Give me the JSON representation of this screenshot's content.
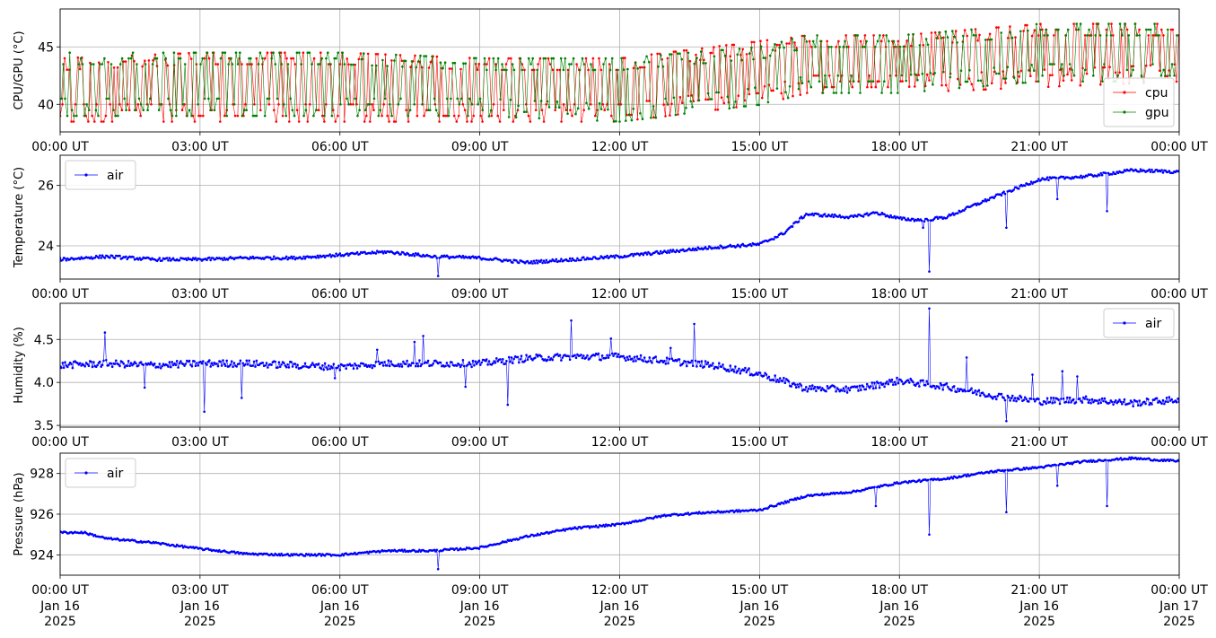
{
  "x_ticks": [
    "00:00 UT",
    "03:00 UT",
    "06:00 UT",
    "09:00 UT",
    "12:00 UT",
    "15:00 UT",
    "18:00 UT",
    "21:00 UT",
    "00:00 UT"
  ],
  "x_date_lines": [
    "Jan 16",
    "Jan 16",
    "Jan 16",
    "Jan 16",
    "Jan 16",
    "Jan 16",
    "Jan 16",
    "Jan 16",
    "Jan 17"
  ],
  "x_year_lines": [
    "2025",
    "2025",
    "2025",
    "2025",
    "2025",
    "2025",
    "2025",
    "2025",
    "2025"
  ],
  "chart_data": [
    {
      "type": "line",
      "ylabel": "CPU/GPU (°C)",
      "ylim": [
        37.6,
        48.3
      ],
      "yticks": [
        40,
        45
      ],
      "xlim": [
        "2025-01-16 00:00",
        "2025-01-17 00:00"
      ],
      "grid": true,
      "legend_position": "bottom-right",
      "series": [
        {
          "name": "cpu",
          "color": "#ff0000",
          "baseline_by_hour": [
            {
              "hour": 0,
              "low": 38.5,
              "high": 44.0
            },
            {
              "hour": 3,
              "low": 38.5,
              "high": 44.5
            },
            {
              "hour": 6,
              "low": 38.5,
              "high": 44.5
            },
            {
              "hour": 9,
              "low": 38.5,
              "high": 44.0
            },
            {
              "hour": 12,
              "low": 38.5,
              "high": 44.0
            },
            {
              "hour": 15,
              "low": 40.0,
              "high": 45.5
            },
            {
              "hour": 16,
              "low": 41.0,
              "high": 46.0
            },
            {
              "hour": 18,
              "low": 41.0,
              "high": 46.0
            },
            {
              "hour": 21,
              "low": 41.5,
              "high": 47.0
            },
            {
              "hour": 24,
              "low": 42.0,
              "high": 47.0
            }
          ]
        },
        {
          "name": "gpu",
          "color": "#008000",
          "baseline_by_hour": [
            {
              "hour": 0,
              "low": 39.0,
              "high": 44.5
            },
            {
              "hour": 3,
              "low": 39.0,
              "high": 44.5
            },
            {
              "hour": 6,
              "low": 39.0,
              "high": 44.5
            },
            {
              "hour": 9,
              "low": 39.0,
              "high": 44.0
            },
            {
              "hour": 12,
              "low": 38.5,
              "high": 44.0
            },
            {
              "hour": 15,
              "low": 40.0,
              "high": 45.0
            },
            {
              "hour": 16,
              "low": 41.0,
              "high": 46.0
            },
            {
              "hour": 18,
              "low": 41.0,
              "high": 46.0
            },
            {
              "hour": 21,
              "low": 42.0,
              "high": 47.0
            },
            {
              "hour": 24,
              "low": 42.0,
              "high": 47.0
            }
          ]
        }
      ]
    },
    {
      "type": "line",
      "ylabel": "Temperature (°C)",
      "ylim": [
        22.9,
        27.0
      ],
      "yticks": [
        24,
        26
      ],
      "xlim": [
        "2025-01-16 00:00",
        "2025-01-17 00:00"
      ],
      "grid": true,
      "legend_position": "top-left",
      "series": [
        {
          "name": "air",
          "color": "#0000ff",
          "x_hours": [
            0,
            1,
            2,
            3,
            4,
            5,
            6,
            7,
            8,
            9,
            10,
            11,
            12,
            13,
            14,
            15,
            15.5,
            16,
            17,
            17.5,
            18,
            18.5,
            19,
            20,
            21,
            22,
            23,
            24
          ],
          "values": [
            23.55,
            23.65,
            23.55,
            23.55,
            23.6,
            23.6,
            23.7,
            23.8,
            23.65,
            23.6,
            23.45,
            23.55,
            23.65,
            23.8,
            23.95,
            24.05,
            24.4,
            25.05,
            24.95,
            25.1,
            24.9,
            24.85,
            24.95,
            25.6,
            26.2,
            26.3,
            26.5,
            26.45
          ],
          "noise": 0.05,
          "dips": [
            {
              "hour": 8.1,
              "value": 23.0
            },
            {
              "hour": 18.5,
              "value": 24.6
            },
            {
              "hour": 18.65,
              "value": 23.15
            },
            {
              "hour": 20.3,
              "value": 24.6
            },
            {
              "hour": 21.4,
              "value": 25.55
            },
            {
              "hour": 22.45,
              "value": 25.15
            }
          ]
        }
      ]
    },
    {
      "type": "line",
      "ylabel": "Humidity (%)",
      "ylim": [
        3.48,
        4.92
      ],
      "yticks": [
        3.5,
        4.0,
        4.5
      ],
      "ytick_labels": [
        "3.5",
        "4.0",
        "4.5"
      ],
      "xlim": [
        "2025-01-16 00:00",
        "2025-01-17 00:00"
      ],
      "grid": true,
      "legend_position": "top-right",
      "series": [
        {
          "name": "air",
          "color": "#0000ff",
          "x_hours": [
            0,
            1,
            2,
            3,
            4,
            5,
            6,
            7,
            8,
            9,
            10,
            11,
            12,
            13,
            14,
            15,
            16,
            17,
            18,
            19,
            20,
            21,
            22,
            23,
            24
          ],
          "values": [
            4.2,
            4.22,
            4.2,
            4.22,
            4.22,
            4.2,
            4.18,
            4.22,
            4.22,
            4.22,
            4.28,
            4.3,
            4.3,
            4.25,
            4.2,
            4.1,
            3.93,
            3.92,
            4.02,
            3.95,
            3.85,
            3.78,
            3.8,
            3.76,
            3.8
          ],
          "noise": 0.04,
          "spikes": [
            {
              "hour": 0.95,
              "value": 4.58
            },
            {
              "hour": 1.8,
              "value": 3.94
            },
            {
              "hour": 3.1,
              "value": 3.66
            },
            {
              "hour": 3.9,
              "value": 3.82
            },
            {
              "hour": 5.9,
              "value": 4.05
            },
            {
              "hour": 6.8,
              "value": 4.38
            },
            {
              "hour": 7.8,
              "value": 4.54
            },
            {
              "hour": 7.6,
              "value": 4.47
            },
            {
              "hour": 8.7,
              "value": 3.95
            },
            {
              "hour": 9.6,
              "value": 3.74
            },
            {
              "hour": 10.95,
              "value": 4.72
            },
            {
              "hour": 11.8,
              "value": 4.51
            },
            {
              "hour": 13.1,
              "value": 4.4
            },
            {
              "hour": 13.6,
              "value": 4.68
            },
            {
              "hour": 18.65,
              "value": 4.86
            },
            {
              "hour": 19.45,
              "value": 4.29
            },
            {
              "hour": 20.3,
              "value": 3.55
            },
            {
              "hour": 20.85,
              "value": 4.09
            },
            {
              "hour": 21.5,
              "value": 4.13
            },
            {
              "hour": 21.8,
              "value": 4.07
            }
          ]
        }
      ]
    },
    {
      "type": "line",
      "ylabel": "Pressure (hPa)",
      "ylim": [
        923.0,
        929.0
      ],
      "yticks": [
        924,
        926,
        928
      ],
      "xlim": [
        "2025-01-16 00:00",
        "2025-01-17 00:00"
      ],
      "grid": true,
      "legend_position": "top-left",
      "series": [
        {
          "name": "air",
          "color": "#0000ff",
          "x_hours": [
            0,
            0.5,
            1,
            2,
            3,
            4,
            5,
            6,
            7,
            8,
            9,
            10,
            11,
            12,
            13,
            14,
            15,
            16,
            17,
            18,
            19,
            20,
            21,
            22,
            23,
            24
          ],
          "values": [
            925.1,
            925.1,
            924.8,
            924.6,
            924.3,
            924.05,
            924.0,
            924.0,
            924.2,
            924.2,
            924.35,
            924.9,
            925.3,
            925.5,
            925.95,
            926.1,
            926.2,
            926.9,
            927.1,
            927.55,
            927.75,
            928.1,
            928.3,
            928.6,
            928.75,
            928.6
          ],
          "noise": 0.05,
          "dips": [
            {
              "hour": 8.1,
              "value": 923.3
            },
            {
              "hour": 17.5,
              "value": 926.4
            },
            {
              "hour": 18.65,
              "value": 925.0
            },
            {
              "hour": 20.3,
              "value": 926.1
            },
            {
              "hour": 21.4,
              "value": 927.4
            },
            {
              "hour": 22.45,
              "value": 926.4
            }
          ]
        }
      ]
    }
  ]
}
